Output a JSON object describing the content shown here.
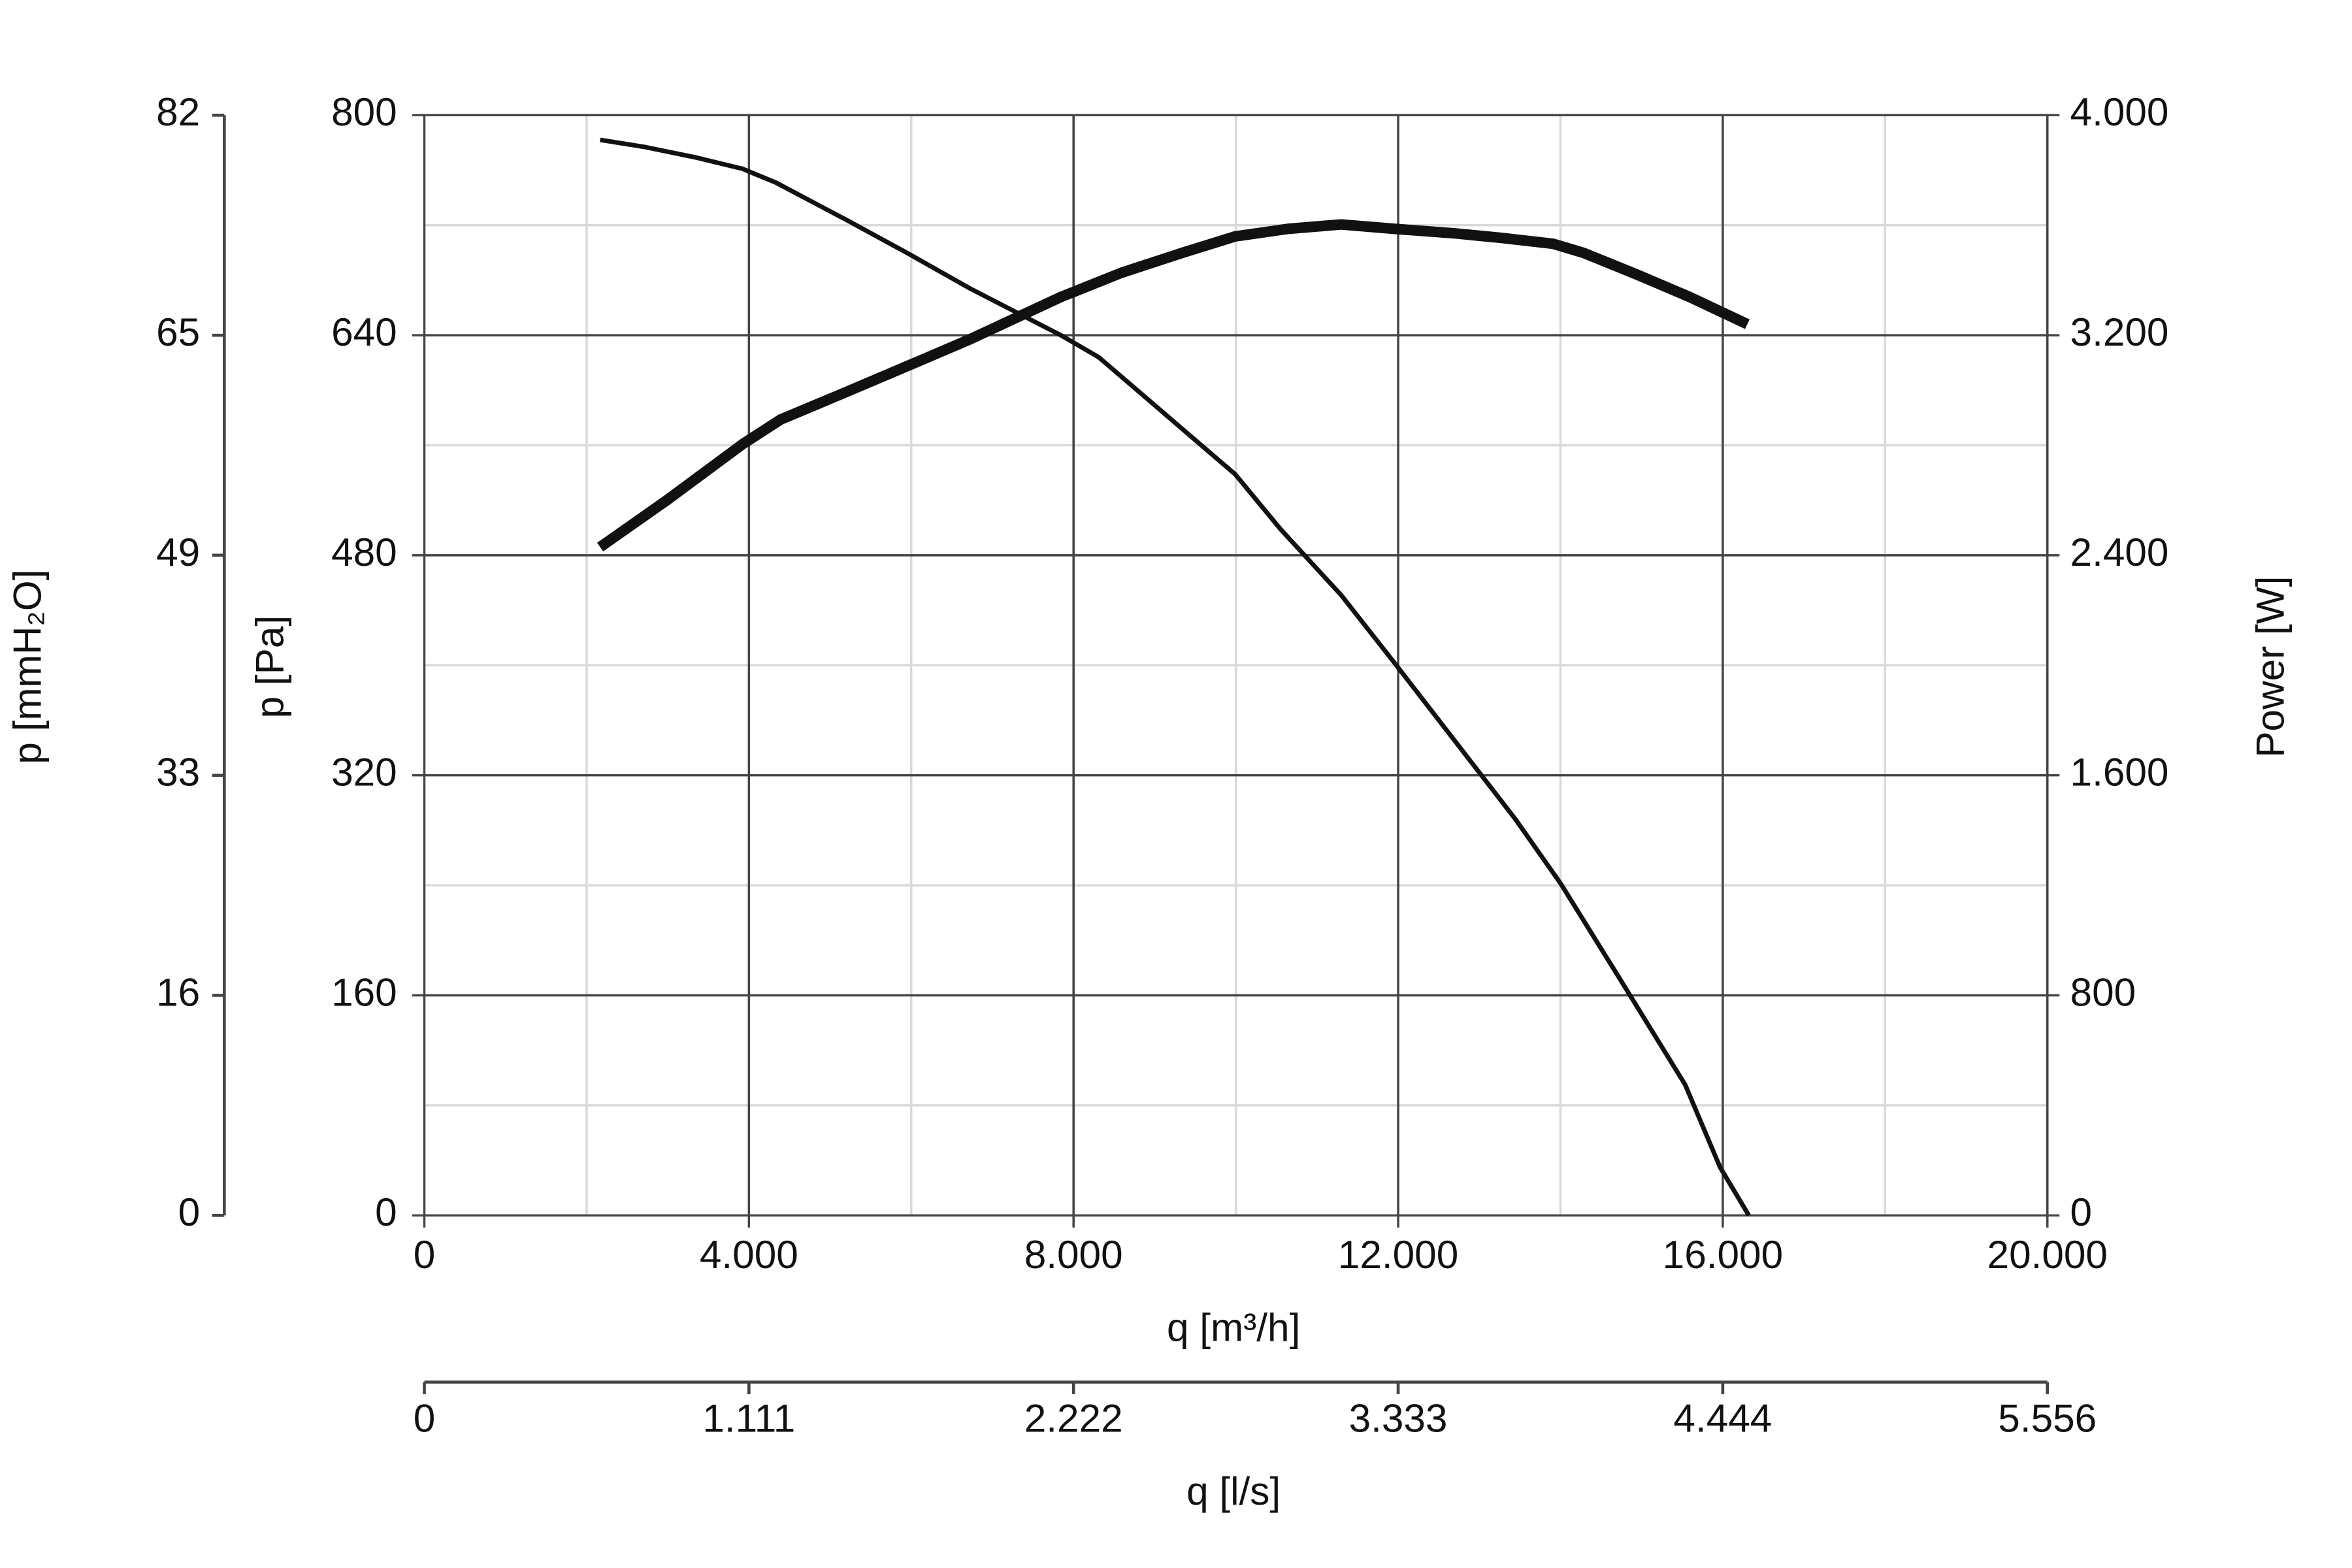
{
  "chart_data": {
    "type": "line",
    "x_label": "q [m³/h]",
    "x2_label": "q [l/s]",
    "y_label": "p [Pa]",
    "y3_label": "p [mmH₂O]",
    "y2_label": "Power [W]",
    "xlim": [
      0,
      20000
    ],
    "xticks": [
      0,
      {
        "value": 4000,
        "label": "4.000"
      },
      {
        "value": 8000,
        "label": "8.000"
      },
      {
        "value": 12000,
        "label": "12.000"
      },
      {
        "value": 16000,
        "label": "16.000"
      },
      {
        "value": 20000,
        "label": "20.000"
      }
    ],
    "x2lim": [
      0,
      5555.6
    ],
    "x2ticks": [
      0,
      {
        "value": 1111.1,
        "label": "1.111"
      },
      {
        "value": 2222.2,
        "label": "2.222"
      },
      {
        "value": 3333.3,
        "label": "3.333"
      },
      {
        "value": 4444.4,
        "label": "4.444"
      },
      {
        "value": 5555.6,
        "label": "5.556"
      }
    ],
    "ylim": [
      0,
      800
    ],
    "yticks": [
      0,
      160,
      320,
      480,
      640,
      800
    ],
    "y3lim": [
      0,
      81.58
    ],
    "y3ticks": [
      0,
      {
        "value": 16.32,
        "label": "16"
      },
      {
        "value": 32.63,
        "label": "33"
      },
      {
        "value": 48.95,
        "label": "49"
      },
      {
        "value": 65.26,
        "label": "65"
      },
      {
        "value": 81.58,
        "label": "82"
      }
    ],
    "y2lim": [
      0,
      4000
    ],
    "y2ticks": [
      0,
      800,
      {
        "value": 1600,
        "label": "1.600"
      },
      {
        "value": 2400,
        "label": "2.400"
      },
      {
        "value": 3200,
        "label": "3.200"
      },
      {
        "value": 4000,
        "label": "4.000"
      }
    ],
    "grid": true,
    "minor_grid": true,
    "series": [
      {
        "color": "#111111",
        "width": 3,
        "axis": "y",
        "x": [
          2166,
          2708,
          3361,
          3922,
          4332,
          5229,
          5976,
          6723,
          7843,
          8310,
          9337,
          9991,
          10551,
          11298,
          11951,
          12698,
          13445,
          14006,
          14753,
          15537,
          15966,
          16321
        ],
        "values": [
          782,
          777,
          769,
          761,
          751,
          723,
          699,
          674,
          640,
          624,
          572,
          539,
          499,
          451,
          402,
          345,
          288,
          241,
          170,
          95,
          35,
          0
        ]
      },
      {
        "color": "#111111",
        "width": 7,
        "axis": "y2",
        "x": [
          2166,
          2988,
          3922,
          4388,
          5229,
          5976,
          6723,
          7843,
          8590,
          9337,
          9991,
          10644,
          11298,
          11951,
          12698,
          13258,
          13912,
          14286,
          14940,
          15593,
          16303
        ],
        "values": [
          2430,
          2600,
          2804,
          2893,
          2997,
          3091,
          3185,
          3339,
          3427,
          3499,
          3559,
          3587,
          3603,
          3587,
          3570,
          3554,
          3532,
          3499,
          3421,
          3339,
          3240
        ]
      }
    ]
  }
}
